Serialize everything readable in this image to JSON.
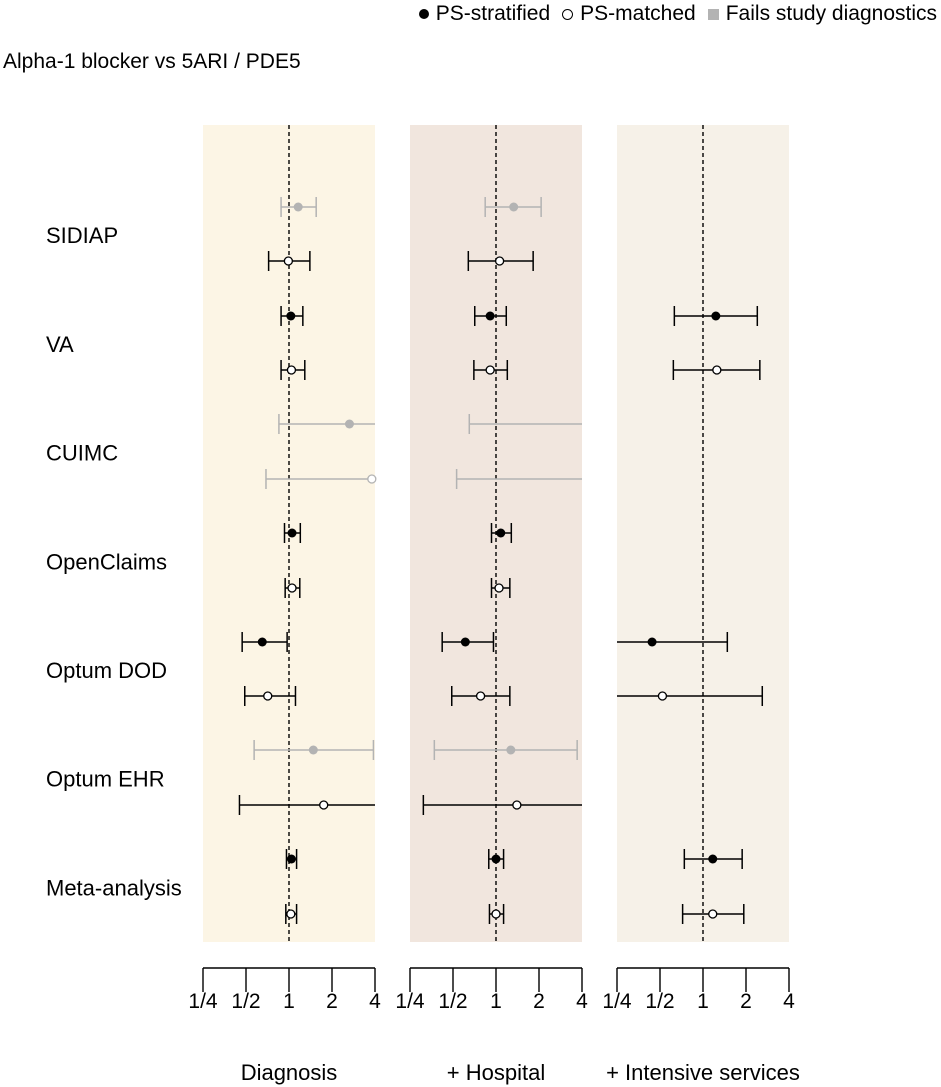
{
  "legend": {
    "items": [
      {
        "label": "PS-stratified",
        "symbol": "filled-circle"
      },
      {
        "label": "PS-matched",
        "symbol": "open-circle"
      },
      {
        "label": "Fails study diagnostics",
        "symbol": "gray-square"
      }
    ]
  },
  "colors": {
    "panel_backgrounds": [
      "#fcf5e5",
      "#f1e6de",
      "#f6f1e8"
    ],
    "passes": "#000000",
    "fails": "#b3b3b3"
  },
  "chart_data": {
    "type": "forest",
    "title": "",
    "subtitle": "Alpha-1 blocker vs 5ARI / PDE5",
    "x_scale": "log2",
    "xlim": [
      0.25,
      4
    ],
    "x_ticks": [
      0.25,
      0.5,
      1,
      2,
      4
    ],
    "x_tick_labels": [
      "1/4",
      "1/2",
      "1",
      "2",
      "4"
    ],
    "reference_line": 1,
    "databases": [
      "SIDIAP",
      "VA",
      "CUIMC",
      "OpenClaims",
      "Optum DOD",
      "Optum EHR",
      "Meta-analysis"
    ],
    "panels": [
      {
        "label": "Diagnosis",
        "estimates": [
          {
            "database": "SIDIAP",
            "method": "PS-stratified",
            "fails_diagnostics": true,
            "estimate": 1.16,
            "lower": 0.88,
            "upper": 1.55
          },
          {
            "database": "SIDIAP",
            "method": "PS-matched",
            "fails_diagnostics": false,
            "estimate": 0.99,
            "lower": 0.72,
            "upper": 1.4
          },
          {
            "database": "VA",
            "method": "PS-stratified",
            "fails_diagnostics": false,
            "estimate": 1.03,
            "lower": 0.88,
            "upper": 1.25
          },
          {
            "database": "VA",
            "method": "PS-matched",
            "fails_diagnostics": false,
            "estimate": 1.04,
            "lower": 0.88,
            "upper": 1.29
          },
          {
            "database": "CUIMC",
            "method": "PS-stratified",
            "fails_diagnostics": true,
            "estimate": 2.65,
            "lower": 0.85,
            "upper": 4.0
          },
          {
            "database": "CUIMC",
            "method": "PS-matched",
            "fails_diagnostics": true,
            "estimate": 3.8,
            "lower": 0.69,
            "upper": 4.0
          },
          {
            "database": "OpenClaims",
            "method": "PS-stratified",
            "fails_diagnostics": false,
            "estimate": 1.05,
            "lower": 0.93,
            "upper": 1.2
          },
          {
            "database": "OpenClaims",
            "method": "PS-matched",
            "fails_diagnostics": false,
            "estimate": 1.05,
            "lower": 0.94,
            "upper": 1.19
          },
          {
            "database": "Optum DOD",
            "method": "PS-stratified",
            "fails_diagnostics": false,
            "estimate": 0.65,
            "lower": 0.47,
            "upper": 0.97
          },
          {
            "database": "Optum DOD",
            "method": "PS-matched",
            "fails_diagnostics": false,
            "estimate": 0.71,
            "lower": 0.49,
            "upper": 1.11
          },
          {
            "database": "Optum EHR",
            "method": "PS-stratified",
            "fails_diagnostics": true,
            "estimate": 1.48,
            "lower": 0.57,
            "upper": 3.9
          },
          {
            "database": "Optum EHR",
            "method": "PS-matched",
            "fails_diagnostics": false,
            "estimate": 1.75,
            "lower": 0.45,
            "upper": 4.0
          },
          {
            "database": "Meta-analysis",
            "method": "PS-stratified",
            "fails_diagnostics": false,
            "estimate": 1.04,
            "lower": 0.96,
            "upper": 1.13
          },
          {
            "database": "Meta-analysis",
            "method": "PS-matched",
            "fails_diagnostics": false,
            "estimate": 1.03,
            "lower": 0.95,
            "upper": 1.13
          }
        ]
      },
      {
        "label": "+ Hospital",
        "estimates": [
          {
            "database": "SIDIAP",
            "method": "PS-stratified",
            "fails_diagnostics": true,
            "estimate": 1.33,
            "lower": 0.84,
            "upper": 2.07
          },
          {
            "database": "SIDIAP",
            "method": "PS-matched",
            "fails_diagnostics": false,
            "estimate": 1.06,
            "lower": 0.64,
            "upper": 1.82
          },
          {
            "database": "VA",
            "method": "PS-stratified",
            "fails_diagnostics": false,
            "estimate": 0.91,
            "lower": 0.71,
            "upper": 1.18
          },
          {
            "database": "VA",
            "method": "PS-matched",
            "fails_diagnostics": false,
            "estimate": 0.91,
            "lower": 0.7,
            "upper": 1.2
          },
          {
            "database": "CUIMC",
            "method": "PS-stratified",
            "fails_diagnostics": true,
            "estimate": null,
            "lower": 0.65,
            "upper": 4.0
          },
          {
            "database": "CUIMC",
            "method": "PS-matched",
            "fails_diagnostics": true,
            "estimate": null,
            "lower": 0.53,
            "upper": 4.0
          },
          {
            "database": "OpenClaims",
            "method": "PS-stratified",
            "fails_diagnostics": false,
            "estimate": 1.08,
            "lower": 0.93,
            "upper": 1.28
          },
          {
            "database": "OpenClaims",
            "method": "PS-matched",
            "fails_diagnostics": false,
            "estimate": 1.05,
            "lower": 0.93,
            "upper": 1.25
          },
          {
            "database": "Optum DOD",
            "method": "PS-stratified",
            "fails_diagnostics": false,
            "estimate": 0.61,
            "lower": 0.42,
            "upper": 0.96
          },
          {
            "database": "Optum DOD",
            "method": "PS-matched",
            "fails_diagnostics": false,
            "estimate": 0.78,
            "lower": 0.49,
            "upper": 1.25
          },
          {
            "database": "Optum EHR",
            "method": "PS-stratified",
            "fails_diagnostics": true,
            "estimate": 1.27,
            "lower": 0.37,
            "upper": 3.7
          },
          {
            "database": "Optum EHR",
            "method": "PS-matched",
            "fails_diagnostics": false,
            "estimate": 1.4,
            "lower": 0.31,
            "upper": 4.0
          },
          {
            "database": "Meta-analysis",
            "method": "PS-stratified",
            "fails_diagnostics": false,
            "estimate": 1.0,
            "lower": 0.89,
            "upper": 1.13
          },
          {
            "database": "Meta-analysis",
            "method": "PS-matched",
            "fails_diagnostics": false,
            "estimate": 1.0,
            "lower": 0.9,
            "upper": 1.13
          }
        ]
      },
      {
        "label": "+ Intensive services",
        "estimates": [
          {
            "database": "VA",
            "method": "PS-stratified",
            "fails_diagnostics": false,
            "estimate": 1.23,
            "lower": 0.63,
            "upper": 2.4
          },
          {
            "database": "VA",
            "method": "PS-matched",
            "fails_diagnostics": false,
            "estimate": 1.25,
            "lower": 0.62,
            "upper": 2.5
          },
          {
            "database": "Optum DOD",
            "method": "PS-stratified",
            "fails_diagnostics": false,
            "estimate": 0.44,
            "lower": 0.25,
            "upper": 1.48
          },
          {
            "database": "Optum DOD",
            "method": "PS-matched",
            "fails_diagnostics": false,
            "estimate": 0.52,
            "lower": 0.25,
            "upper": 2.6
          },
          {
            "database": "Meta-analysis",
            "method": "PS-stratified",
            "fails_diagnostics": false,
            "estimate": 1.17,
            "lower": 0.74,
            "upper": 1.88
          },
          {
            "database": "Meta-analysis",
            "method": "PS-matched",
            "fails_diagnostics": false,
            "estimate": 1.17,
            "lower": 0.72,
            "upper": 1.93
          }
        ]
      }
    ]
  }
}
